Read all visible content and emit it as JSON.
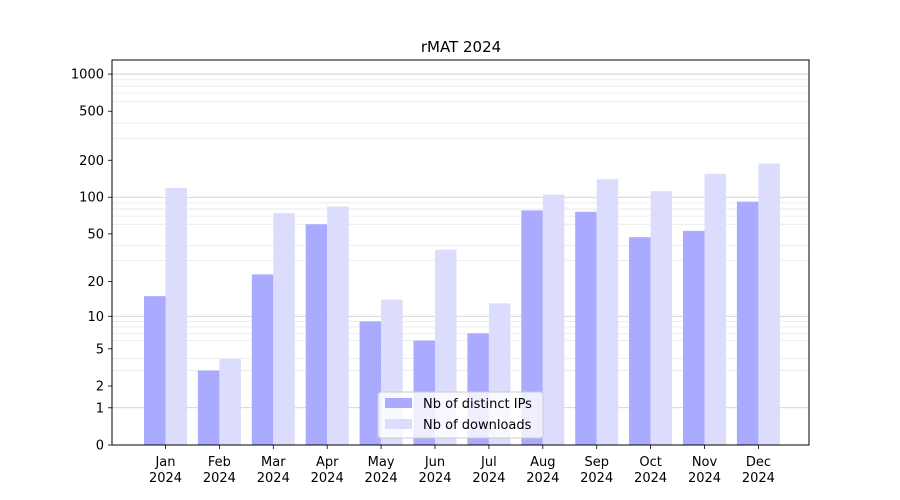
{
  "chart_data": {
    "type": "bar",
    "title": "rMAT 2024",
    "xlabel": "",
    "ylabel": "",
    "yscale": "log(1+y)",
    "ylim": [
      0,
      1300
    ],
    "categories": [
      [
        "Jan",
        "2024"
      ],
      [
        "Feb",
        "2024"
      ],
      [
        "Mar",
        "2024"
      ],
      [
        "Apr",
        "2024"
      ],
      [
        "May",
        "2024"
      ],
      [
        "Jun",
        "2024"
      ],
      [
        "Jul",
        "2024"
      ],
      [
        "Aug",
        "2024"
      ],
      [
        "Sep",
        "2024"
      ],
      [
        "Oct",
        "2024"
      ],
      [
        "Nov",
        "2024"
      ],
      [
        "Dec",
        "2024"
      ]
    ],
    "series": [
      {
        "name": "Nb of distinct IPs",
        "color": "#aaaaff",
        "values": [
          15,
          3,
          23,
          60,
          9,
          6,
          7,
          78,
          76,
          47,
          53,
          92
        ]
      },
      {
        "name": "Nb of downloads",
        "color": "#dcdcfd",
        "values": [
          119,
          4,
          74,
          84,
          14,
          37,
          13,
          105,
          140,
          112,
          155,
          188
        ]
      }
    ],
    "yticks": [
      0,
      1,
      2,
      5,
      10,
      20,
      50,
      100,
      200,
      500,
      1000
    ],
    "grid": "y (major and minor)",
    "legend": "lower-center"
  }
}
